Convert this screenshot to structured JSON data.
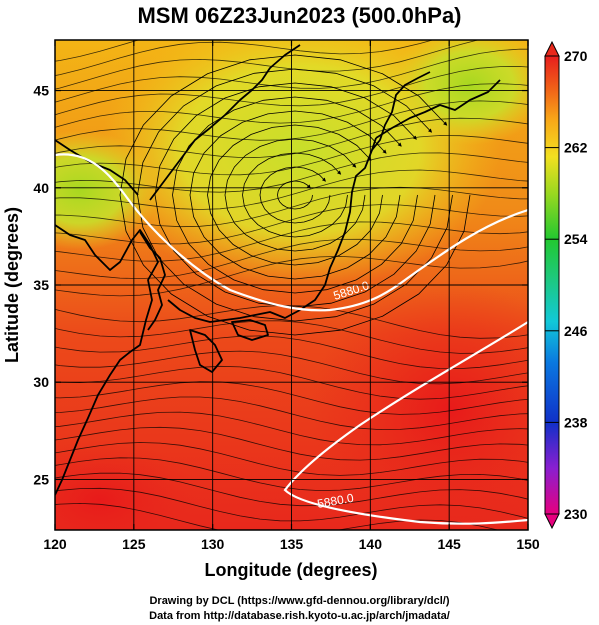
{
  "figure": {
    "title": "MSM 06Z23Jun2023 (500.0hPa)",
    "xlabel": "Longitude (degrees)",
    "ylabel": "Latitude  (degrees)",
    "credit_line1": "Drawing by DCL (https://www.gfd-dennou.org/library/dcl/)",
    "credit_line2": "Data from http://database.rish.kyoto-u.ac.jp/arch/jmadata/"
  },
  "map": {
    "lon_range": [
      120,
      150
    ],
    "lat_range": [
      22.4,
      47.6
    ],
    "x_ticks": [
      "120",
      "125",
      "130",
      "135",
      "140",
      "145",
      "150"
    ],
    "y_ticks": [
      "25",
      "30",
      "35",
      "40",
      "45"
    ],
    "grid": true,
    "contour_labels": [
      "5880.0",
      "5880.0"
    ]
  },
  "colorbar": {
    "min": 230,
    "max": 270,
    "labels": [
      "270",
      "262",
      "254",
      "246",
      "238",
      "230"
    ],
    "colors": [
      "#e6007e",
      "#8a1fd0",
      "#1030c8",
      "#0a78e0",
      "#12c8d8",
      "#1ec878",
      "#22c830",
      "#9ad820",
      "#f2e020",
      "#f8a818",
      "#f06018",
      "#e81e1e"
    ]
  }
}
